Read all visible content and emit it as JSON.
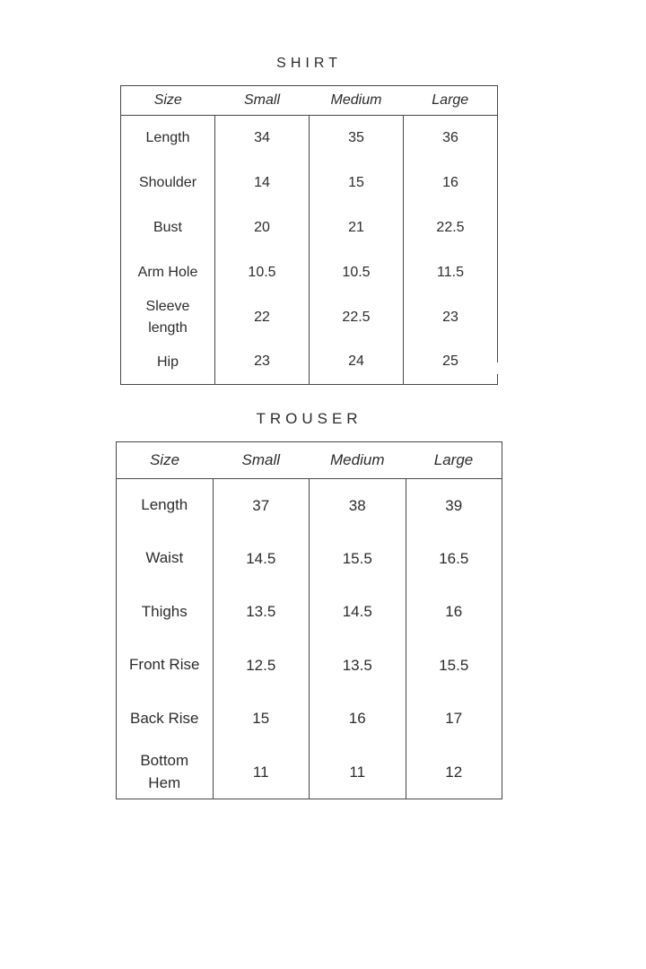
{
  "page": {
    "background": "#ffffff",
    "text_color": "#2c2c2c",
    "border_color": "#474747"
  },
  "shirt": {
    "title": "SHIRT",
    "columns": [
      "Size",
      "Small",
      "Medium",
      "Large"
    ],
    "rows": [
      {
        "label": "Length",
        "values": [
          "34",
          "35",
          "36"
        ]
      },
      {
        "label": "Shoulder",
        "values": [
          "14",
          "15",
          "16"
        ]
      },
      {
        "label": "Bust",
        "values": [
          "20",
          "21",
          "22.5"
        ]
      },
      {
        "label": "Arm Hole",
        "values": [
          "10.5",
          "10.5",
          "11.5"
        ]
      },
      {
        "label": "Sleeve\nlength",
        "values": [
          "22",
          "22.5",
          "23"
        ]
      },
      {
        "label": "Hip",
        "values": [
          "23",
          "24",
          "25"
        ]
      }
    ]
  },
  "trouser": {
    "title": "TROUSER",
    "columns": [
      "Size",
      "Small",
      "Medium",
      "Large"
    ],
    "rows": [
      {
        "label": "Length",
        "values": [
          "37",
          "38",
          "39"
        ]
      },
      {
        "label": "Waist",
        "values": [
          "14.5",
          "15.5",
          "16.5"
        ]
      },
      {
        "label": "Thighs",
        "values": [
          "13.5",
          "14.5",
          "16"
        ]
      },
      {
        "label": "Front Rise",
        "values": [
          "12.5",
          "13.5",
          "15.5"
        ]
      },
      {
        "label": "Back Rise",
        "values": [
          "15",
          "16",
          "17"
        ]
      },
      {
        "label": "Bottom\nHem",
        "values": [
          "11",
          "11",
          "12"
        ]
      }
    ]
  }
}
